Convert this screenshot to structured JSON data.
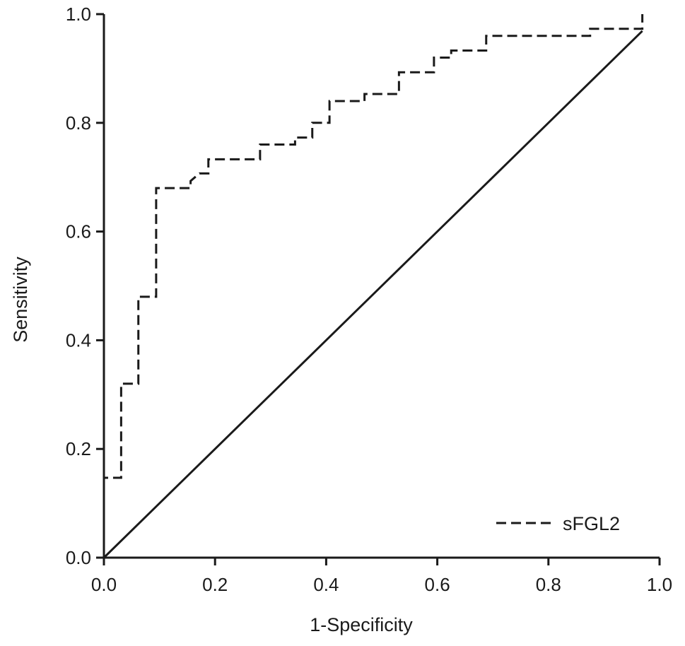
{
  "chart_data": {
    "type": "line",
    "title": "",
    "xlabel": "1-Specificity",
    "ylabel": "Sensitivity",
    "xlim": [
      0,
      1
    ],
    "ylim": [
      0,
      1
    ],
    "x_ticks": [
      "0.0",
      "0.2",
      "0.4",
      "0.6",
      "0.8",
      "1.0"
    ],
    "y_ticks": [
      "0.0",
      "0.2",
      "0.4",
      "0.6",
      "0.8",
      "1.0"
    ],
    "grid": false,
    "legend_position": "bottom-right",
    "series": [
      {
        "name": "sFGL2",
        "style": "dashed",
        "color": "#1a1a1a",
        "points": [
          [
            0.0,
            0.0
          ],
          [
            0.0,
            0.147
          ],
          [
            0.031,
            0.147
          ],
          [
            0.031,
            0.32
          ],
          [
            0.062,
            0.32
          ],
          [
            0.062,
            0.48
          ],
          [
            0.094,
            0.48
          ],
          [
            0.094,
            0.68
          ],
          [
            0.156,
            0.68
          ],
          [
            0.156,
            0.693
          ],
          [
            0.172,
            0.707
          ],
          [
            0.188,
            0.707
          ],
          [
            0.188,
            0.733
          ],
          [
            0.281,
            0.733
          ],
          [
            0.281,
            0.76
          ],
          [
            0.344,
            0.76
          ],
          [
            0.344,
            0.773
          ],
          [
            0.375,
            0.773
          ],
          [
            0.375,
            0.8
          ],
          [
            0.406,
            0.8
          ],
          [
            0.406,
            0.84
          ],
          [
            0.469,
            0.84
          ],
          [
            0.469,
            0.853
          ],
          [
            0.531,
            0.853
          ],
          [
            0.531,
            0.893
          ],
          [
            0.594,
            0.893
          ],
          [
            0.594,
            0.92
          ],
          [
            0.625,
            0.92
          ],
          [
            0.625,
            0.933
          ],
          [
            0.688,
            0.933
          ],
          [
            0.688,
            0.96
          ],
          [
            0.875,
            0.96
          ],
          [
            0.875,
            0.973
          ],
          [
            0.969,
            0.973
          ],
          [
            0.969,
            1.0
          ]
        ]
      },
      {
        "name": "",
        "style": "solid",
        "color": "#1a1a1a",
        "points": [
          [
            0.0,
            0.0
          ],
          [
            0.969,
            0.969
          ]
        ]
      }
    ]
  }
}
